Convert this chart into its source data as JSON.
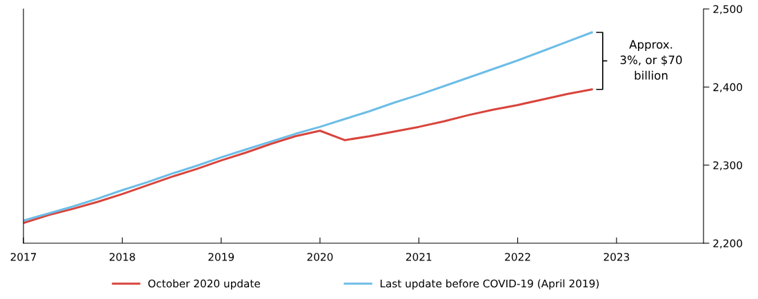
{
  "chart_data": {
    "type": "line",
    "x": [
      2017,
      2017.25,
      2017.5,
      2017.75,
      2018,
      2018.25,
      2018.5,
      2018.75,
      2019,
      2019.25,
      2019.5,
      2019.75,
      2020,
      2020.25,
      2020.5,
      2020.75,
      2021,
      2021.25,
      2021.5,
      2021.75,
      2022,
      2022.25,
      2022.5,
      2022.75
    ],
    "series": [
      {
        "name": "October 2020 update",
        "color": "#d8443c",
        "values": [
          2226,
          2236,
          2244,
          2253,
          2263,
          2274,
          2285,
          2295,
          2306,
          2316,
          2327,
          2337,
          2344,
          2332,
          2337,
          2343,
          2349,
          2356,
          2364,
          2371,
          2377,
          2384,
          2391,
          2397
        ]
      },
      {
        "name": "Last update before COVID-19 (April 2019)",
        "color": "#6cbde6",
        "values": [
          2229,
          2238,
          2247,
          2257,
          2268,
          2278,
          2289,
          2299,
          2310,
          2320,
          2330,
          2340,
          2349,
          2359,
          2369,
          2380,
          2390,
          2401,
          2412,
          2423,
          2434,
          2446,
          2458,
          2470
        ]
      }
    ],
    "xlim": [
      2017,
      2023.88
    ],
    "xticks": [
      2017,
      2018,
      2019,
      2020,
      2021,
      2022,
      2023
    ],
    "ylim": [
      2200,
      2500
    ],
    "yticks": [
      {
        "value": 2200,
        "label": "2,200"
      },
      {
        "value": 2300,
        "label": "2,300"
      },
      {
        "value": 2400,
        "label": "2,400"
      },
      {
        "value": 2500,
        "label": "2,500"
      }
    ],
    "annotations": [
      "Approx.\n3%, or $70\nbillion"
    ],
    "legend": "bottom",
    "grid": false,
    "marker": "none",
    "line_style": "solid"
  }
}
